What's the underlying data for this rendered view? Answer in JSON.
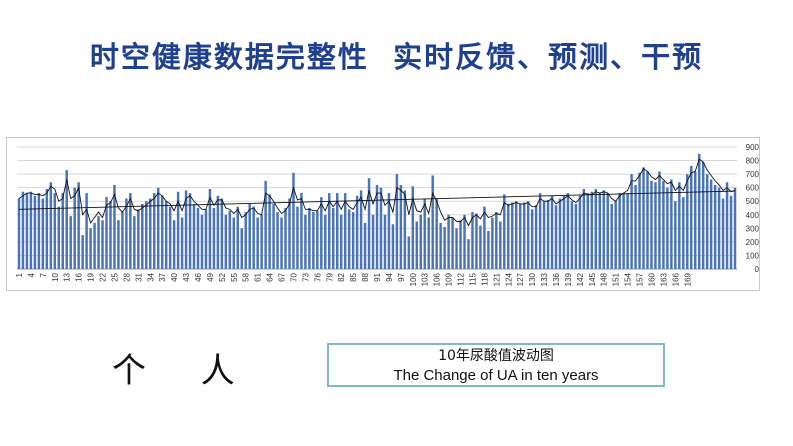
{
  "title": "时空健康数据完整性  实时反馈、预测、干预",
  "person_label": "个 人",
  "caption": {
    "cn": "10年尿酸值波动图",
    "en": "The Change of UA in ten years"
  },
  "colors": {
    "title": "#1f3f8f",
    "bar": "#4a73b8",
    "line": "#111111",
    "trend": "#111111",
    "grid": "#d8d8d8",
    "caption_border": "#7fb9c6"
  },
  "chart_data": {
    "type": "bar",
    "x_ticks": [
      "1",
      "4",
      "7",
      "10",
      "13",
      "16",
      "19",
      "22",
      "25",
      "28",
      "31",
      "34",
      "37",
      "40",
      "43",
      "46",
      "49",
      "52",
      "55",
      "58",
      "61",
      "64",
      "67",
      "70",
      "73",
      "76",
      "79",
      "82",
      "85",
      "88",
      "91",
      "94",
      "97",
      "100",
      "103",
      "106",
      "109",
      "112",
      "115",
      "118",
      "121",
      "124",
      "127",
      "130",
      "133",
      "136",
      "139",
      "142",
      "145",
      "148",
      "151",
      "154",
      "157",
      "160",
      "163",
      "166",
      "169"
    ],
    "y_ticks": [
      "0",
      "100",
      "200",
      "300",
      "400",
      "500",
      "600",
      "700",
      "800",
      "900"
    ],
    "ylim": [
      0,
      900
    ],
    "y_axis_position": "right",
    "grid": true,
    "legend": "none",
    "trendline": {
      "start": 440,
      "end": 575
    },
    "series": [
      {
        "type": "bar",
        "values": [
          520,
          570,
          560,
          570,
          540,
          560,
          520,
          590,
          640,
          560,
          460,
          560,
          730,
          390,
          600,
          640,
          250,
          560,
          300,
          340,
          390,
          360,
          530,
          500,
          620,
          360,
          420,
          520,
          560,
          390,
          440,
          480,
          500,
          520,
          560,
          600,
          540,
          500,
          460,
          360,
          570,
          380,
          580,
          560,
          480,
          450,
          400,
          440,
          590,
          450,
          540,
          520,
          400,
          430,
          380,
          460,
          300,
          420,
          480,
          460,
          380,
          400,
          650,
          550,
          480,
          420,
          380,
          450,
          520,
          710,
          460,
          560,
          400,
          450,
          420,
          430,
          530,
          400,
          560,
          450,
          560,
          400,
          560,
          440,
          420,
          540,
          580,
          340,
          670,
          400,
          620,
          600,
          400,
          560,
          330,
          700,
          620,
          580,
          240,
          610,
          350,
          400,
          520,
          380,
          690,
          520,
          340,
          310,
          400,
          380,
          300,
          360,
          400,
          220,
          420,
          410,
          320,
          460,
          280,
          380,
          420,
          350,
          550,
          480,
          490,
          500,
          480,
          490,
          500,
          440,
          470,
          560,
          500,
          510,
          540,
          470,
          520,
          540,
          560,
          500,
          480,
          540,
          590,
          560,
          570,
          590,
          560,
          580,
          560,
          480,
          500,
          560,
          560,
          560,
          700,
          620,
          710,
          750,
          720,
          650,
          640,
          720,
          650,
          600,
          660,
          500,
          640,
          530,
          700,
          760,
          720,
          850,
          790,
          700,
          660,
          620,
          600,
          520,
          640,
          540,
          600
        ]
      },
      {
        "type": "line",
        "values": [
          520,
          540,
          560,
          560,
          550,
          550,
          540,
          560,
          610,
          590,
          500,
          520,
          660,
          520,
          540,
          600,
          400,
          440,
          340,
          380,
          420,
          380,
          470,
          490,
          550,
          450,
          420,
          460,
          520,
          440,
          430,
          450,
          470,
          500,
          520,
          560,
          540,
          500,
          480,
          430,
          500,
          430,
          520,
          540,
          500,
          470,
          440,
          440,
          530,
          470,
          510,
          510,
          450,
          440,
          410,
          440,
          380,
          400,
          440,
          450,
          410,
          400,
          560,
          540,
          500,
          450,
          410,
          430,
          480,
          600,
          510,
          520,
          440,
          440,
          430,
          430,
          480,
          430,
          500,
          460,
          500,
          440,
          500,
          460,
          440,
          490,
          530,
          440,
          580,
          480,
          560,
          560,
          470,
          500,
          420,
          600,
          580,
          550,
          400,
          520,
          430,
          420,
          480,
          410,
          560,
          500,
          420,
          360,
          380,
          380,
          350,
          350,
          380,
          320,
          380,
          400,
          370,
          420,
          380,
          390,
          410,
          400,
          490,
          470,
          480,
          490,
          480,
          480,
          490,
          460,
          460,
          520,
          500,
          500,
          520,
          480,
          500,
          520,
          540,
          510,
          490,
          520,
          560,
          550,
          550,
          570,
          560,
          570,
          560,
          520,
          500,
          540,
          560,
          580,
          650,
          650,
          690,
          740,
          720,
          680,
          660,
          690,
          660,
          630,
          640,
          580,
          610,
          580,
          650,
          710,
          720,
          810,
          790,
          730,
          690,
          650,
          620,
          580,
          600,
          570,
          580
        ]
      }
    ]
  }
}
